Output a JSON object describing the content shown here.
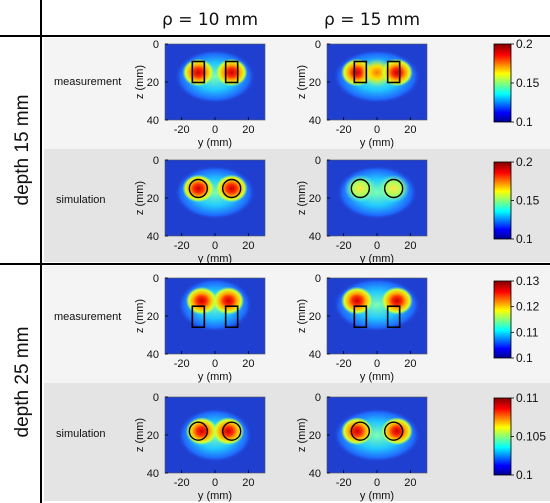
{
  "columns": [
    "ρ = 10 mm",
    "ρ = 15 mm"
  ],
  "groups": [
    {
      "label": "depth 15 mm",
      "rows": [
        {
          "label": "measurement",
          "cbar_ticks": [
            "0.2",
            "0.15",
            "0.1"
          ],
          "marker": "rect"
        },
        {
          "label": "simulation",
          "cbar_ticks": [
            "0.2",
            "0.15",
            "0.1"
          ],
          "marker": "circle"
        }
      ]
    },
    {
      "label": "depth 25 mm",
      "rows": [
        {
          "label": "measurement",
          "cbar_ticks": [
            "0.13",
            "0.12",
            "0.11",
            "0.1"
          ],
          "marker": "rect"
        },
        {
          "label": "simulation",
          "cbar_ticks": [
            "0.11",
            "0.105",
            "0.1"
          ],
          "marker": "circle"
        }
      ]
    }
  ],
  "axes": {
    "xlabel": "y (mm)",
    "ylabel": "z (mm)",
    "xticks": [
      "-20",
      "0",
      "20"
    ],
    "yticks": [
      "0",
      "20",
      "40"
    ]
  },
  "colors": {
    "panel_bg_light": "#f4f4f4",
    "panel_bg_dark": "#e4e4e4",
    "line": "#000000"
  },
  "chart_data": [
    {
      "type": "heatmap",
      "title": "depth 15 mm / measurement / ρ = 10 mm",
      "xlabel": "y (mm)",
      "ylabel": "z (mm)",
      "xlim": [
        -30,
        30
      ],
      "ylim": [
        40,
        0
      ],
      "clim": [
        0.1,
        0.2
      ],
      "colormap": "jet",
      "hotspots": [
        {
          "y": -10,
          "z": 15,
          "value": 0.2
        },
        {
          "y": 10,
          "z": 15,
          "value": 0.2
        }
      ],
      "markers": "rect"
    },
    {
      "type": "heatmap",
      "title": "depth 15 mm / measurement / ρ = 15 mm",
      "xlabel": "y (mm)",
      "ylabel": "z (mm)",
      "xlim": [
        -30,
        30
      ],
      "ylim": [
        40,
        0
      ],
      "clim": [
        0.1,
        0.2
      ],
      "colormap": "jet",
      "hotspots": [
        {
          "y": -12,
          "z": 15,
          "value": 0.19
        },
        {
          "y": 0,
          "z": 15,
          "value": 0.17
        },
        {
          "y": 12,
          "z": 15,
          "value": 0.19
        }
      ],
      "markers": "rect"
    },
    {
      "type": "heatmap",
      "title": "depth 15 mm / simulation / ρ = 10 mm",
      "xlabel": "y (mm)",
      "ylabel": "z (mm)",
      "xlim": [
        -30,
        30
      ],
      "ylim": [
        40,
        0
      ],
      "clim": [
        0.1,
        0.2
      ],
      "colormap": "jet",
      "hotspots": [
        {
          "y": -10,
          "z": 15,
          "value": 0.19
        },
        {
          "y": 10,
          "z": 15,
          "value": 0.19
        }
      ],
      "markers": "circle"
    },
    {
      "type": "heatmap",
      "title": "depth 15 mm / simulation / ρ = 15 mm",
      "xlabel": "y (mm)",
      "ylabel": "z (mm)",
      "xlim": [
        -30,
        30
      ],
      "ylim": [
        40,
        0
      ],
      "clim": [
        0.1,
        0.2
      ],
      "colormap": "jet",
      "hotspots": [
        {
          "y": -10,
          "z": 15,
          "value": 0.15
        },
        {
          "y": 10,
          "z": 15,
          "value": 0.15
        }
      ],
      "markers": "circle"
    },
    {
      "type": "heatmap",
      "title": "depth 25 mm / measurement / ρ = 10 mm",
      "xlabel": "y (mm)",
      "ylabel": "z (mm)",
      "xlim": [
        -30,
        30
      ],
      "ylim": [
        40,
        0
      ],
      "clim": [
        0.1,
        0.13
      ],
      "colormap": "jet",
      "hotspots": [
        {
          "y": -8,
          "z": 12,
          "value": 0.13
        },
        {
          "y": 8,
          "z": 12,
          "value": 0.13
        }
      ],
      "markers": "rect"
    },
    {
      "type": "heatmap",
      "title": "depth 25 mm / measurement / ρ = 15 mm",
      "xlabel": "y (mm)",
      "ylabel": "z (mm)",
      "xlim": [
        -30,
        30
      ],
      "ylim": [
        40,
        0
      ],
      "clim": [
        0.1,
        0.13
      ],
      "colormap": "jet",
      "hotspots": [
        {
          "y": -12,
          "z": 12,
          "value": 0.13
        },
        {
          "y": 12,
          "z": 12,
          "value": 0.13
        }
      ],
      "markers": "rect"
    },
    {
      "type": "heatmap",
      "title": "depth 25 mm / simulation / ρ = 10 mm",
      "xlabel": "y (mm)",
      "ylabel": "z (mm)",
      "xlim": [
        -30,
        30
      ],
      "ylim": [
        40,
        0
      ],
      "clim": [
        0.1,
        0.11
      ],
      "colormap": "jet",
      "hotspots": [
        {
          "y": -8,
          "z": 18,
          "value": 0.11
        },
        {
          "y": 8,
          "z": 18,
          "value": 0.11
        }
      ],
      "markers": "circle"
    },
    {
      "type": "heatmap",
      "title": "depth 25 mm / simulation / ρ = 15 mm",
      "xlabel": "y (mm)",
      "ylabel": "z (mm)",
      "xlim": [
        -30,
        30
      ],
      "ylim": [
        40,
        0
      ],
      "clim": [
        0.1,
        0.11
      ],
      "colormap": "jet",
      "hotspots": [
        {
          "y": -12,
          "z": 18,
          "value": 0.11
        },
        {
          "y": 12,
          "z": 18,
          "value": 0.11
        }
      ],
      "markers": "circle"
    }
  ]
}
